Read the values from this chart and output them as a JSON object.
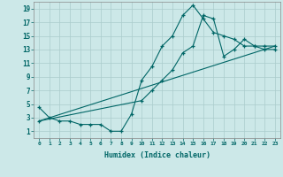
{
  "xlabel": "Humidex (Indice chaleur)",
  "bg_color": "#cce8e8",
  "grid_color": "#aacccc",
  "line_color": "#006666",
  "xlim": [
    -0.5,
    23.5
  ],
  "ylim": [
    0.0,
    20.0
  ],
  "ytick_vals": [
    1,
    3,
    5,
    7,
    9,
    11,
    13,
    15,
    17,
    19
  ],
  "series1_x": [
    0,
    1,
    2,
    3,
    4,
    5,
    6,
    7,
    8,
    9,
    10,
    11,
    12,
    13,
    14,
    15,
    16,
    17,
    18,
    19,
    20,
    21,
    22,
    23
  ],
  "series1_y": [
    4.5,
    3.0,
    2.5,
    2.5,
    2.0,
    2.0,
    2.0,
    1.0,
    1.0,
    3.5,
    8.5,
    10.5,
    13.5,
    15.0,
    18.0,
    19.5,
    17.5,
    15.5,
    15.0,
    14.5,
    13.5,
    13.5,
    13.5,
    13.5
  ],
  "series2_x": [
    0,
    10,
    11,
    12,
    13,
    14,
    15,
    16,
    17,
    18,
    19,
    20,
    21,
    22,
    23
  ],
  "series2_y": [
    2.5,
    5.5,
    7.0,
    8.5,
    10.0,
    12.5,
    13.5,
    18.0,
    17.5,
    12.0,
    13.0,
    14.5,
    13.5,
    13.0,
    13.0
  ],
  "series3_x": [
    0,
    23
  ],
  "series3_y": [
    2.5,
    13.5
  ],
  "xtick_labels": [
    "0",
    "1",
    "2",
    "3",
    "4",
    "5",
    "6",
    "7",
    "8",
    "9",
    "10",
    "11",
    "12",
    "13",
    "14",
    "15",
    "16",
    "17",
    "18",
    "19",
    "20",
    "21",
    "22",
    "23"
  ]
}
